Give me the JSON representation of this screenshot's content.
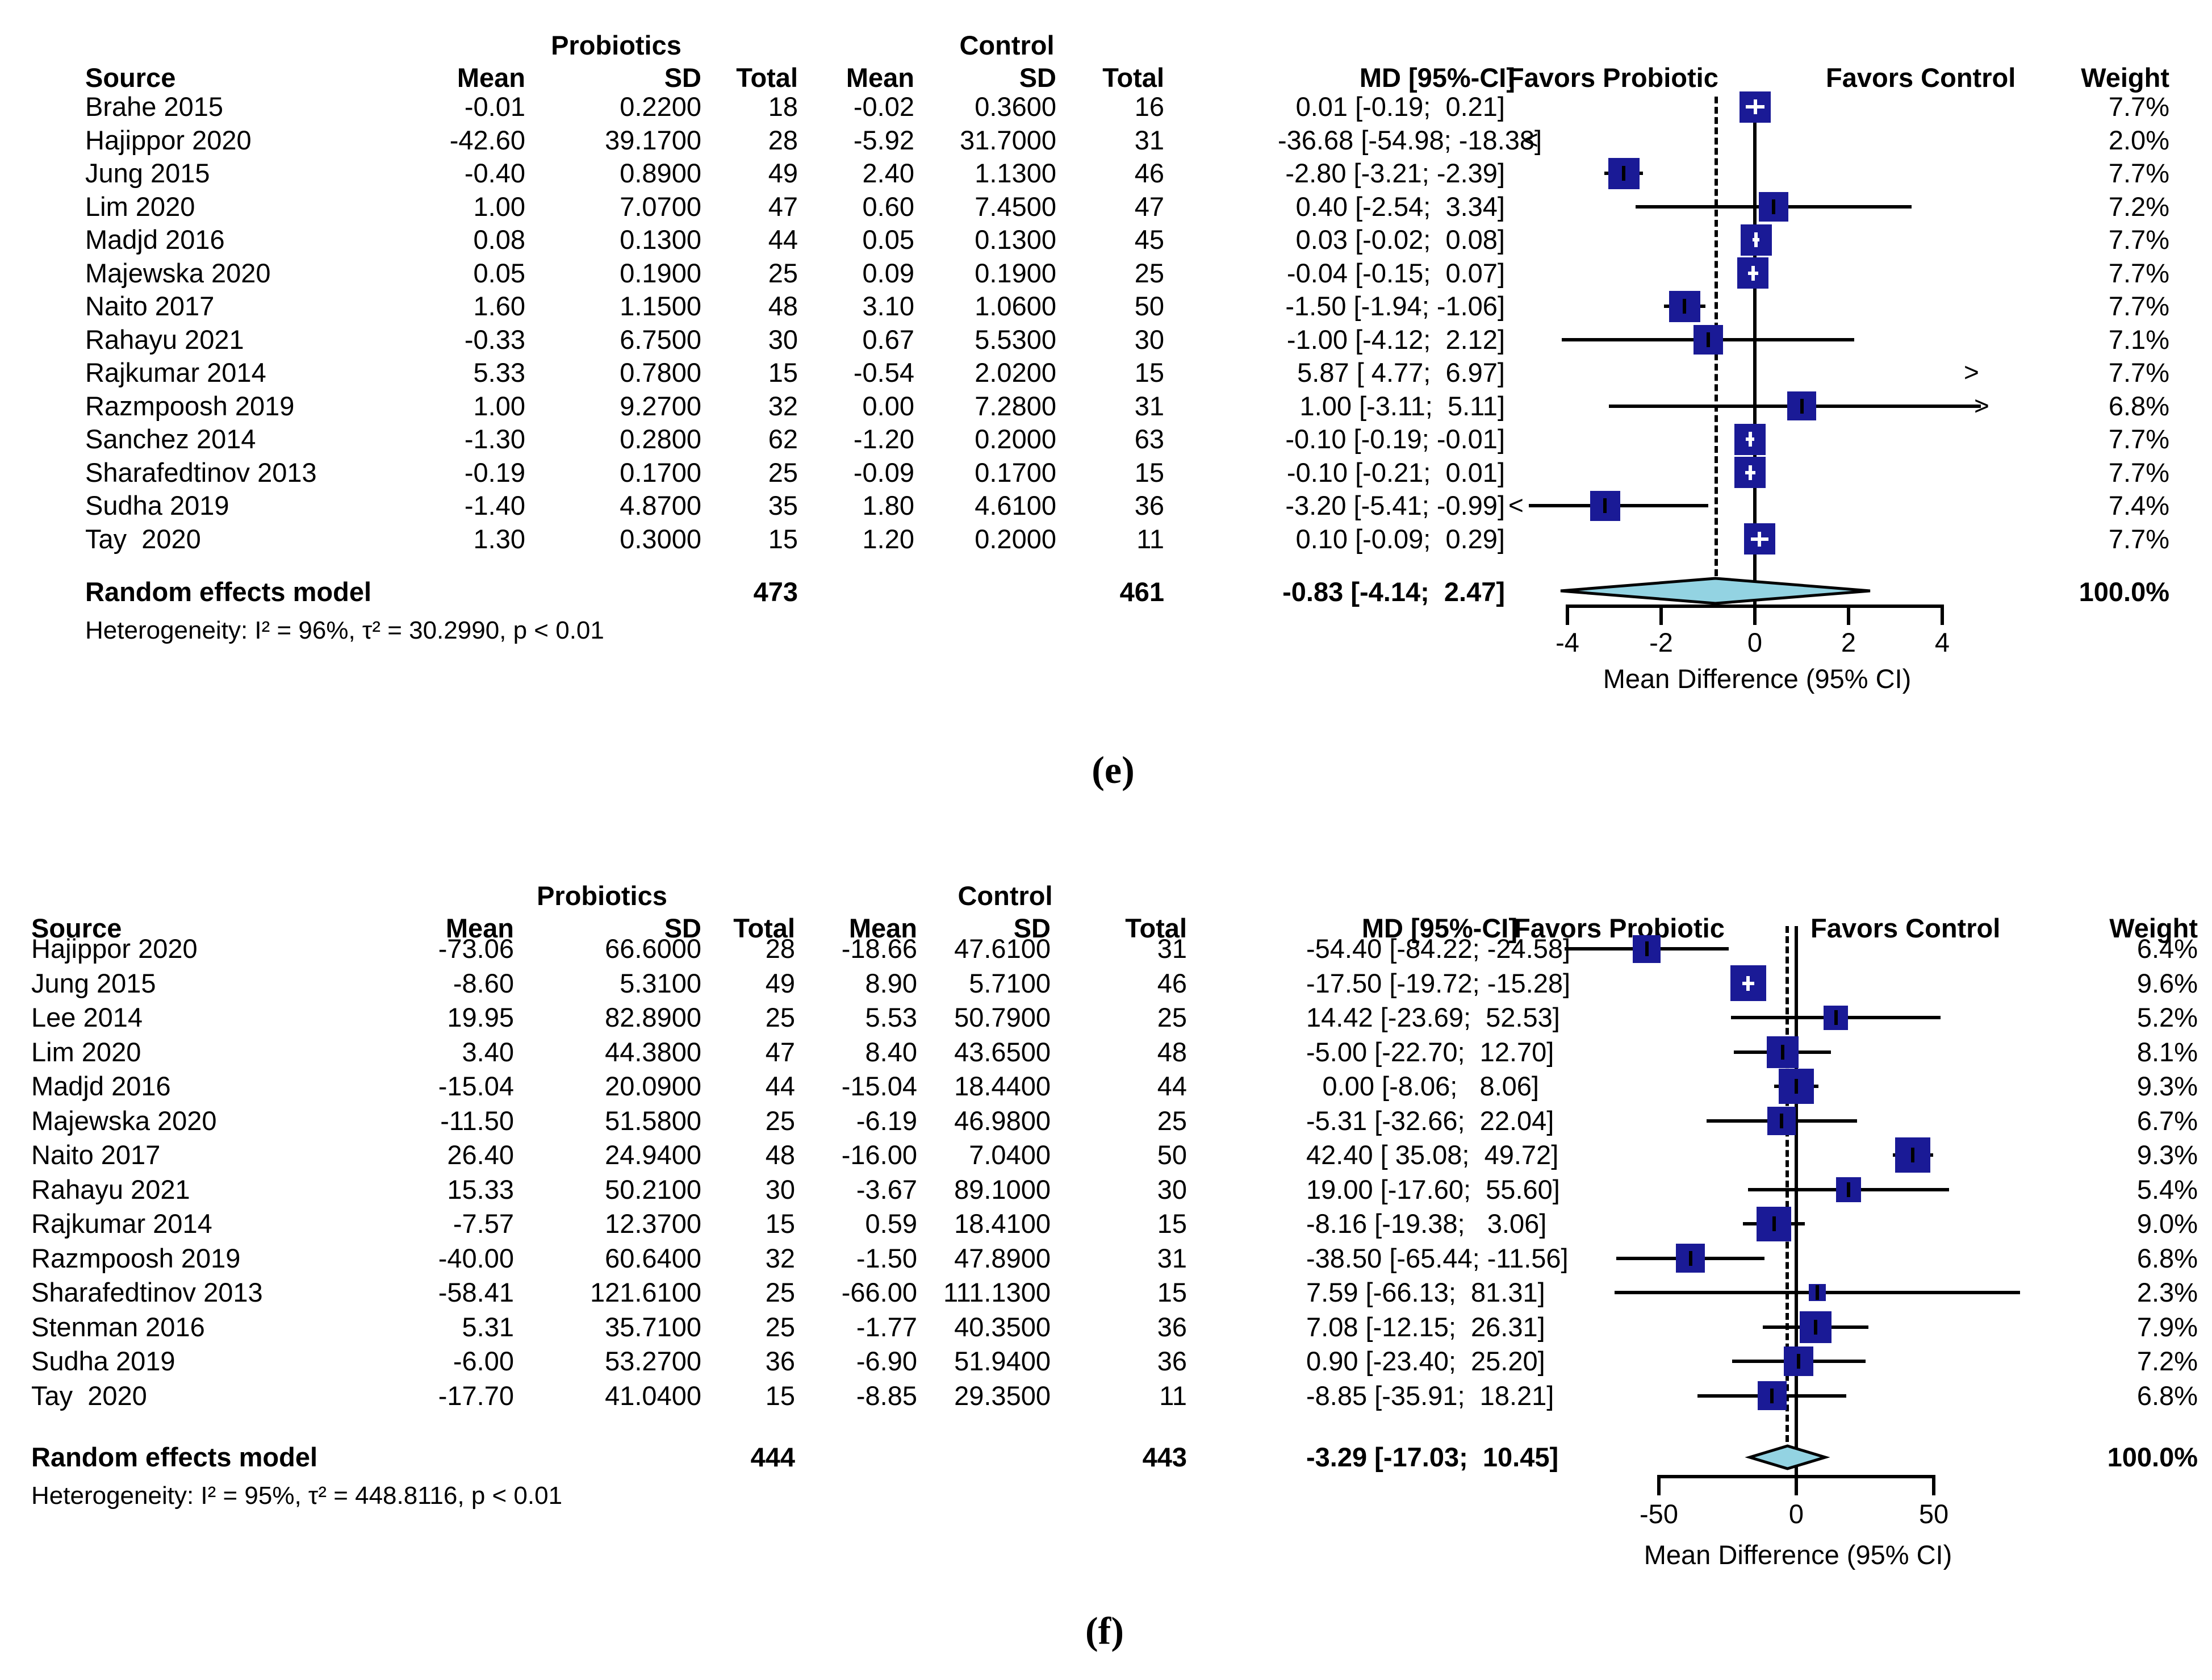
{
  "chart_data": {
    "type": "forest",
    "description": "Two forest plots of mean differences, probiotics vs control, random effects meta-analysis",
    "panels": [
      {
        "panel_label": "(e)",
        "group_headers": {
          "probiotics": "Probiotics",
          "control": "Control"
        },
        "col_headers": {
          "source": "Source",
          "mean": "Mean",
          "sd": "SD",
          "total": "Total",
          "mean2": "Mean",
          "sd2": "SD",
          "total2": "Total",
          "md": "MD [95%-CI]",
          "favors_left": "Favors Probiotic",
          "favors_right": "Favors Control",
          "weight": "Weight"
        },
        "rows": [
          {
            "source": "Brahe 2015",
            "mean": "-0.01",
            "sd": "0.2200",
            "total": "18",
            "c_mean": "-0.02",
            "c_sd": "0.3600",
            "c_total": "16",
            "md_text": "0.01 [-0.19;  0.21]",
            "weight": "7.7%",
            "md": 0.01,
            "lo": -0.19,
            "hi": 0.21,
            "w": 7.7
          },
          {
            "source": "Hajippor 2020",
            "mean": "-42.60",
            "sd": "39.1700",
            "total": "28",
            "c_mean": "-5.92",
            "c_sd": "31.7000",
            "c_total": "31",
            "md_text": "-36.68 [-54.98; -18.38]",
            "weight": "2.0%",
            "md": -36.68,
            "lo": -54.98,
            "hi": -18.38,
            "w": 2.0
          },
          {
            "source": "Jung 2015",
            "mean": "-0.40",
            "sd": "0.8900",
            "total": "49",
            "c_mean": "2.40",
            "c_sd": "1.1300",
            "c_total": "46",
            "md_text": "-2.80 [-3.21; -2.39]",
            "weight": "7.7%",
            "md": -2.8,
            "lo": -3.21,
            "hi": -2.39,
            "w": 7.7
          },
          {
            "source": "Lim 2020",
            "mean": "1.00",
            "sd": "7.0700",
            "total": "47",
            "c_mean": "0.60",
            "c_sd": "7.4500",
            "c_total": "47",
            "md_text": "0.40 [-2.54;  3.34]",
            "weight": "7.2%",
            "md": 0.4,
            "lo": -2.54,
            "hi": 3.34,
            "w": 7.2
          },
          {
            "source": "Madjd 2016",
            "mean": "0.08",
            "sd": "0.1300",
            "total": "44",
            "c_mean": "0.05",
            "c_sd": "0.1300",
            "c_total": "45",
            "md_text": "0.03 [-0.02;  0.08]",
            "weight": "7.7%",
            "md": 0.03,
            "lo": -0.02,
            "hi": 0.08,
            "w": 7.7
          },
          {
            "source": "Majewska 2020",
            "mean": "0.05",
            "sd": "0.1900",
            "total": "25",
            "c_mean": "0.09",
            "c_sd": "0.1900",
            "c_total": "25",
            "md_text": "-0.04 [-0.15;  0.07]",
            "weight": "7.7%",
            "md": -0.04,
            "lo": -0.15,
            "hi": 0.07,
            "w": 7.7
          },
          {
            "source": "Naito 2017",
            "mean": "1.60",
            "sd": "1.1500",
            "total": "48",
            "c_mean": "3.10",
            "c_sd": "1.0600",
            "c_total": "50",
            "md_text": "-1.50 [-1.94; -1.06]",
            "weight": "7.7%",
            "md": -1.5,
            "lo": -1.94,
            "hi": -1.06,
            "w": 7.7
          },
          {
            "source": "Rahayu 2021",
            "mean": "-0.33",
            "sd": "6.7500",
            "total": "30",
            "c_mean": "0.67",
            "c_sd": "5.5300",
            "c_total": "30",
            "md_text": "-1.00 [-4.12;  2.12]",
            "weight": "7.1%",
            "md": -1.0,
            "lo": -4.12,
            "hi": 2.12,
            "w": 7.1
          },
          {
            "source": "Rajkumar 2014",
            "mean": "5.33",
            "sd": "0.7800",
            "total": "15",
            "c_mean": "-0.54",
            "c_sd": "2.0200",
            "c_total": "15",
            "md_text": "5.87 [ 4.77;  6.97]",
            "weight": "7.7%",
            "md": 5.87,
            "lo": 4.77,
            "hi": 6.97,
            "w": 7.7
          },
          {
            "source": "Razmpoosh 2019",
            "mean": "1.00",
            "sd": "9.2700",
            "total": "32",
            "c_mean": "0.00",
            "c_sd": "7.2800",
            "c_total": "31",
            "md_text": "1.00 [-3.11;  5.11]",
            "weight": "6.8%",
            "md": 1.0,
            "lo": -3.11,
            "hi": 5.11,
            "w": 6.8
          },
          {
            "source": "Sanchez 2014",
            "mean": "-1.30",
            "sd": "0.2800",
            "total": "62",
            "c_mean": "-1.20",
            "c_sd": "0.2000",
            "c_total": "63",
            "md_text": "-0.10 [-0.19; -0.01]",
            "weight": "7.7%",
            "md": -0.1,
            "lo": -0.19,
            "hi": -0.01,
            "w": 7.7
          },
          {
            "source": "Sharafedtinov 2013",
            "mean": "-0.19",
            "sd": "0.1700",
            "total": "25",
            "c_mean": "-0.09",
            "c_sd": "0.1700",
            "c_total": "15",
            "md_text": "-0.10 [-0.21;  0.01]",
            "weight": "7.7%",
            "md": -0.1,
            "lo": -0.21,
            "hi": 0.01,
            "w": 7.7
          },
          {
            "source": "Sudha 2019",
            "mean": "-1.40",
            "sd": "4.8700",
            "total": "35",
            "c_mean": "1.80",
            "c_sd": "4.6100",
            "c_total": "36",
            "md_text": "-3.20 [-5.41; -0.99]",
            "weight": "7.4%",
            "md": -3.2,
            "lo": -5.41,
            "hi": -0.99,
            "w": 7.4
          },
          {
            "source": "Tay  2020",
            "mean": "1.30",
            "sd": "0.3000",
            "total": "15",
            "c_mean": "1.20",
            "c_sd": "0.2000",
            "c_total": "11",
            "md_text": "0.10 [-0.09;  0.29]",
            "weight": "7.7%",
            "md": 0.1,
            "lo": -0.09,
            "hi": 0.29,
            "w": 7.7
          }
        ],
        "summary": {
          "label": "Random effects model",
          "total": "473",
          "c_total": "461",
          "md_text": "-0.83 [-4.14;  2.47]",
          "weight": "100.0%",
          "md": -0.83,
          "lo": -4.14,
          "hi": 2.47
        },
        "heterogeneity": "Heterogeneity: I² = 96%, τ² = 30.2990, p < 0.01",
        "axis": {
          "min": -4,
          "max": 4,
          "ticks": [
            -4,
            -2,
            0,
            2,
            4
          ],
          "xlabel": "Mean Difference (95% CI)"
        }
      },
      {
        "panel_label": "(f)",
        "group_headers": {
          "probiotics": "Probiotics",
          "control": "Control"
        },
        "col_headers": {
          "source": "Source",
          "mean": "Mean",
          "sd": "SD",
          "total": "Total",
          "mean2": "Mean",
          "sd2": "SD",
          "total2": "Total",
          "md": "MD [95%-CI]",
          "favors_left": "Favors Probiotic",
          "favors_right": "Favors Control",
          "weight": "Weight"
        },
        "rows": [
          {
            "source": "Hajippor 2020",
            "mean": "-73.06",
            "sd": "66.6000",
            "total": "28",
            "c_mean": "-18.66",
            "c_sd": "47.6100",
            "c_total": "31",
            "md_text": "-54.40 [-84.22; -24.58]",
            "weight": "6.4%",
            "md": -54.4,
            "lo": -84.22,
            "hi": -24.58,
            "w": 6.4
          },
          {
            "source": "Jung 2015",
            "mean": "-8.60",
            "sd": "5.3100",
            "total": "49",
            "c_mean": "8.90",
            "c_sd": "5.7100",
            "c_total": "46",
            "md_text": "-17.50 [-19.72; -15.28]",
            "weight": "9.6%",
            "md": -17.5,
            "lo": -19.72,
            "hi": -15.28,
            "w": 9.6
          },
          {
            "source": "Lee 2014",
            "mean": "19.95",
            "sd": "82.8900",
            "total": "25",
            "c_mean": "5.53",
            "c_sd": "50.7900",
            "c_total": "25",
            "md_text": "14.42 [-23.69;  52.53]",
            "weight": "5.2%",
            "md": 14.42,
            "lo": -23.69,
            "hi": 52.53,
            "w": 5.2
          },
          {
            "source": "Lim 2020",
            "mean": "3.40",
            "sd": "44.3800",
            "total": "47",
            "c_mean": "8.40",
            "c_sd": "43.6500",
            "c_total": "48",
            "md_text": "-5.00 [-22.70;  12.70]",
            "weight": "8.1%",
            "md": -5.0,
            "lo": -22.7,
            "hi": 12.7,
            "w": 8.1
          },
          {
            "source": "Madjd 2016",
            "mean": "-15.04",
            "sd": "20.0900",
            "total": "44",
            "c_mean": "-15.04",
            "c_sd": "18.4400",
            "c_total": "44",
            "md_text": "0.00 [-8.06;   8.06]",
            "weight": "9.3%",
            "md": 0.0,
            "lo": -8.06,
            "hi": 8.06,
            "w": 9.3
          },
          {
            "source": "Majewska 2020",
            "mean": "-11.50",
            "sd": "51.5800",
            "total": "25",
            "c_mean": "-6.19",
            "c_sd": "46.9800",
            "c_total": "25",
            "md_text": "-5.31 [-32.66;  22.04]",
            "weight": "6.7%",
            "md": -5.31,
            "lo": -32.66,
            "hi": 22.04,
            "w": 6.7
          },
          {
            "source": "Naito 2017",
            "mean": "26.40",
            "sd": "24.9400",
            "total": "48",
            "c_mean": "-16.00",
            "c_sd": "7.0400",
            "c_total": "50",
            "md_text": "42.40 [ 35.08;  49.72]",
            "weight": "9.3%",
            "md": 42.4,
            "lo": 35.08,
            "hi": 49.72,
            "w": 9.3
          },
          {
            "source": "Rahayu 2021",
            "mean": "15.33",
            "sd": "50.2100",
            "total": "30",
            "c_mean": "-3.67",
            "c_sd": "89.1000",
            "c_total": "30",
            "md_text": "19.00 [-17.60;  55.60]",
            "weight": "5.4%",
            "md": 19.0,
            "lo": -17.6,
            "hi": 55.6,
            "w": 5.4
          },
          {
            "source": "Rajkumar 2014",
            "mean": "-7.57",
            "sd": "12.3700",
            "total": "15",
            "c_mean": "0.59",
            "c_sd": "18.4100",
            "c_total": "15",
            "md_text": "-8.16 [-19.38;   3.06]",
            "weight": "9.0%",
            "md": -8.16,
            "lo": -19.38,
            "hi": 3.06,
            "w": 9.0
          },
          {
            "source": "Razmpoosh 2019",
            "mean": "-40.00",
            "sd": "60.6400",
            "total": "32",
            "c_mean": "-1.50",
            "c_sd": "47.8900",
            "c_total": "31",
            "md_text": "-38.50 [-65.44; -11.56]",
            "weight": "6.8%",
            "md": -38.5,
            "lo": -65.44,
            "hi": -11.56,
            "w": 6.8
          },
          {
            "source": "Sharafedtinov 2013",
            "mean": "-58.41",
            "sd": "121.6100",
            "total": "25",
            "c_mean": "-66.00",
            "c_sd": "111.1300",
            "c_total": "15",
            "md_text": "7.59 [-66.13;  81.31]",
            "weight": "2.3%",
            "md": 7.59,
            "lo": -66.13,
            "hi": 81.31,
            "w": 2.3
          },
          {
            "source": "Stenman 2016",
            "mean": "5.31",
            "sd": "35.7100",
            "total": "25",
            "c_mean": "-1.77",
            "c_sd": "40.3500",
            "c_total": "36",
            "md_text": "7.08 [-12.15;  26.31]",
            "weight": "7.9%",
            "md": 7.08,
            "lo": -12.15,
            "hi": 26.31,
            "w": 7.9
          },
          {
            "source": "Sudha 2019",
            "mean": "-6.00",
            "sd": "53.2700",
            "total": "36",
            "c_mean": "-6.90",
            "c_sd": "51.9400",
            "c_total": "36",
            "md_text": "0.90 [-23.40;  25.20]",
            "weight": "7.2%",
            "md": 0.9,
            "lo": -23.4,
            "hi": 25.2,
            "w": 7.2
          },
          {
            "source": "Tay  2020",
            "mean": "-17.70",
            "sd": "41.0400",
            "total": "15",
            "c_mean": "-8.85",
            "c_sd": "29.3500",
            "c_total": "11",
            "md_text": "-8.85 [-35.91;  18.21]",
            "weight": "6.8%",
            "md": -8.85,
            "lo": -35.91,
            "hi": 18.21,
            "w": 6.8
          }
        ],
        "summary": {
          "label": "Random effects model",
          "total": "444",
          "c_total": "443",
          "md_text": "-3.29 [-17.03;  10.45]",
          "weight": "100.0%",
          "md": -3.29,
          "lo": -17.03,
          "hi": 10.45
        },
        "heterogeneity": "Heterogeneity: I² = 95%, τ² = 448.8116, p < 0.01",
        "axis": {
          "min": -50,
          "max": 50,
          "ticks": [
            -50,
            0,
            50
          ],
          "xlabel": "Mean Difference (95% CI)"
        }
      }
    ]
  },
  "colors": {
    "square": "#1a1a96",
    "diamond": "#93d3e2",
    "line": "#000000",
    "marker_tight": "#ffffff"
  }
}
